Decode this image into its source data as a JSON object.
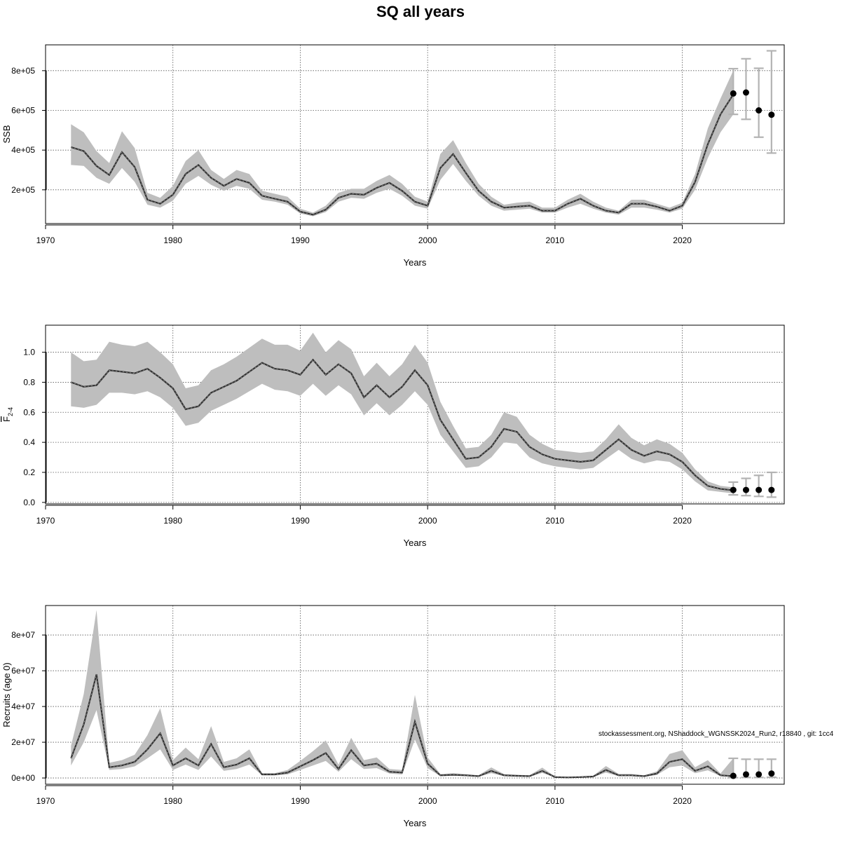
{
  "title": "SQ all years",
  "footnote": "stockassessment.org, NShaddock_WGNSSK2024_Run2, r18840 , git: 1cc4",
  "colors": {
    "band": "#bebebe",
    "line": "#333333",
    "errorbar": "#b3b3b3",
    "point": "#000000",
    "grid": "#555555"
  },
  "chart_data": [
    {
      "type": "line",
      "ylabel": "SSB",
      "xlabel": "Years",
      "xlim": [
        1970,
        2028
      ],
      "ylim": [
        30000,
        930000
      ],
      "xticks": [
        1970,
        1980,
        1990,
        2000,
        2010,
        2020
      ],
      "yticks": [
        200000,
        400000,
        600000,
        800000
      ],
      "ytick_labels": [
        "2e+05",
        "4e+05",
        "6e+05",
        "8e+05"
      ],
      "grid": true,
      "x": [
        1972,
        1973,
        1974,
        1975,
        1976,
        1977,
        1978,
        1979,
        1980,
        1981,
        1982,
        1983,
        1984,
        1985,
        1986,
        1987,
        1988,
        1989,
        1990,
        1991,
        1992,
        1993,
        1994,
        1995,
        1996,
        1997,
        1998,
        1999,
        2000,
        2001,
        2002,
        2003,
        2004,
        2005,
        2006,
        2007,
        2008,
        2009,
        2010,
        2011,
        2012,
        2013,
        2014,
        2015,
        2016,
        2017,
        2018,
        2019,
        2020,
        2021,
        2022,
        2023,
        2024
      ],
      "estimate": [
        415000,
        395000,
        320000,
        275000,
        390000,
        315000,
        150000,
        130000,
        175000,
        280000,
        325000,
        260000,
        220000,
        255000,
        235000,
        170000,
        155000,
        140000,
        90000,
        75000,
        100000,
        160000,
        180000,
        175000,
        210000,
        235000,
        195000,
        140000,
        120000,
        310000,
        380000,
        285000,
        195000,
        140000,
        110000,
        115000,
        120000,
        95000,
        95000,
        130000,
        155000,
        120000,
        95000,
        85000,
        130000,
        130000,
        115000,
        95000,
        120000,
        240000,
        430000,
        580000,
        680000
      ],
      "lower": [
        325000,
        320000,
        260000,
        230000,
        310000,
        240000,
        125000,
        110000,
        145000,
        230000,
        270000,
        225000,
        195000,
        220000,
        205000,
        150000,
        140000,
        125000,
        80000,
        67000,
        88000,
        140000,
        160000,
        155000,
        185000,
        205000,
        170000,
        120000,
        105000,
        250000,
        330000,
        245000,
        170000,
        120000,
        95000,
        100000,
        105000,
        85000,
        85000,
        110000,
        130000,
        105000,
        85000,
        75000,
        110000,
        110000,
        100000,
        85000,
        105000,
        200000,
        360000,
        490000,
        580000
      ],
      "upper": [
        530000,
        490000,
        395000,
        335000,
        495000,
        410000,
        185000,
        160000,
        220000,
        345000,
        400000,
        300000,
        255000,
        300000,
        280000,
        195000,
        180000,
        165000,
        105000,
        85000,
        120000,
        185000,
        205000,
        205000,
        245000,
        275000,
        230000,
        165000,
        140000,
        380000,
        450000,
        335000,
        230000,
        165000,
        125000,
        135000,
        140000,
        110000,
        110000,
        150000,
        180000,
        140000,
        110000,
        95000,
        150000,
        150000,
        130000,
        110000,
        135000,
        280000,
        510000,
        660000,
        800000
      ],
      "forecast": [
        {
          "year": 2024,
          "value": 685000,
          "lower": 580000,
          "upper": 810000
        },
        {
          "year": 2025,
          "value": 690000,
          "lower": 555000,
          "upper": 860000
        },
        {
          "year": 2026,
          "value": 600000,
          "lower": 465000,
          "upper": 812000
        },
        {
          "year": 2027,
          "value": 578000,
          "lower": 385000,
          "upper": 900000
        }
      ]
    },
    {
      "type": "line",
      "ylabel_main": "F",
      "ylabel_sub": "2-4",
      "xlabel": "Years",
      "xlim": [
        1970,
        2028
      ],
      "ylim": [
        -0.01,
        1.18
      ],
      "xticks": [
        1970,
        1980,
        1990,
        2000,
        2010,
        2020
      ],
      "yticks": [
        0.0,
        0.2,
        0.4,
        0.6,
        0.8,
        1.0
      ],
      "ytick_labels": [
        "0.0",
        "0.2",
        "0.4",
        "0.6",
        "0.8",
        "1.0"
      ],
      "grid": true,
      "x": [
        1972,
        1973,
        1974,
        1975,
        1976,
        1977,
        1978,
        1979,
        1980,
        1981,
        1982,
        1983,
        1984,
        1985,
        1986,
        1987,
        1988,
        1989,
        1990,
        1991,
        1992,
        1993,
        1994,
        1995,
        1996,
        1997,
        1998,
        1999,
        2000,
        2001,
        2002,
        2003,
        2004,
        2005,
        2006,
        2007,
        2008,
        2009,
        2010,
        2011,
        2012,
        2013,
        2014,
        2015,
        2016,
        2017,
        2018,
        2019,
        2020,
        2021,
        2022,
        2023,
        2024
      ],
      "estimate": [
        0.8,
        0.77,
        0.78,
        0.88,
        0.87,
        0.86,
        0.89,
        0.83,
        0.76,
        0.62,
        0.64,
        0.73,
        0.77,
        0.81,
        0.87,
        0.93,
        0.89,
        0.88,
        0.85,
        0.95,
        0.85,
        0.92,
        0.86,
        0.7,
        0.78,
        0.7,
        0.77,
        0.88,
        0.78,
        0.55,
        0.42,
        0.29,
        0.3,
        0.37,
        0.49,
        0.47,
        0.37,
        0.32,
        0.29,
        0.28,
        0.27,
        0.28,
        0.35,
        0.42,
        0.35,
        0.31,
        0.34,
        0.32,
        0.27,
        0.18,
        0.11,
        0.09,
        0.08
      ],
      "lower": [
        0.64,
        0.63,
        0.65,
        0.73,
        0.73,
        0.72,
        0.74,
        0.7,
        0.63,
        0.51,
        0.53,
        0.61,
        0.65,
        0.69,
        0.74,
        0.79,
        0.75,
        0.74,
        0.71,
        0.79,
        0.71,
        0.78,
        0.72,
        0.58,
        0.66,
        0.58,
        0.65,
        0.74,
        0.65,
        0.45,
        0.34,
        0.23,
        0.24,
        0.3,
        0.4,
        0.39,
        0.3,
        0.26,
        0.24,
        0.23,
        0.22,
        0.23,
        0.29,
        0.35,
        0.29,
        0.26,
        0.28,
        0.27,
        0.22,
        0.14,
        0.08,
        0.07,
        0.06
      ],
      "upper": [
        1.0,
        0.94,
        0.95,
        1.07,
        1.05,
        1.04,
        1.07,
        1.0,
        0.92,
        0.76,
        0.78,
        0.88,
        0.92,
        0.97,
        1.03,
        1.09,
        1.05,
        1.05,
        1.01,
        1.13,
        1.0,
        1.08,
        1.02,
        0.84,
        0.93,
        0.84,
        0.92,
        1.05,
        0.93,
        0.67,
        0.51,
        0.36,
        0.37,
        0.45,
        0.6,
        0.57,
        0.45,
        0.39,
        0.35,
        0.34,
        0.33,
        0.34,
        0.42,
        0.52,
        0.43,
        0.38,
        0.42,
        0.39,
        0.33,
        0.22,
        0.14,
        0.11,
        0.1
      ],
      "forecast": [
        {
          "year": 2024,
          "value": 0.083,
          "lower": 0.05,
          "upper": 0.135
        },
        {
          "year": 2025,
          "value": 0.083,
          "lower": 0.045,
          "upper": 0.16
        },
        {
          "year": 2026,
          "value": 0.083,
          "lower": 0.04,
          "upper": 0.18
        },
        {
          "year": 2027,
          "value": 0.083,
          "lower": 0.035,
          "upper": 0.2
        }
      ]
    },
    {
      "type": "line",
      "ylabel": "Recruits (age 0)",
      "xlabel": "Years",
      "xlim": [
        1970,
        2028
      ],
      "ylim": [
        -3500000,
        96500000
      ],
      "xticks": [
        1970,
        1980,
        1990,
        2000,
        2010,
        2020
      ],
      "yticks": [
        0,
        20000000,
        40000000,
        60000000,
        80000000
      ],
      "ytick_labels": [
        "0e+00",
        "2e+07",
        "4e+07",
        "6e+07",
        "8e+07"
      ],
      "grid": true,
      "x": [
        1972,
        1973,
        1974,
        1975,
        1976,
        1977,
        1978,
        1979,
        1980,
        1981,
        1982,
        1983,
        1984,
        1985,
        1986,
        1987,
        1988,
        1989,
        1990,
        1991,
        1992,
        1993,
        1994,
        1995,
        1996,
        1997,
        1998,
        1999,
        2000,
        2001,
        2002,
        2003,
        2004,
        2005,
        2006,
        2007,
        2008,
        2009,
        2010,
        2011,
        2012,
        2013,
        2014,
        2015,
        2016,
        2017,
        2018,
        2019,
        2020,
        2021,
        2022,
        2023,
        2024
      ],
      "estimate": [
        11000000,
        30000000,
        58000000,
        6000000,
        7000000,
        9000000,
        16000000,
        25000000,
        7000000,
        11000000,
        7000000,
        19000000,
        6000000,
        7500000,
        11000000,
        2000000,
        2000000,
        3000000,
        6500000,
        10000000,
        14000000,
        5000000,
        15500000,
        7000000,
        8000000,
        3500000,
        3000000,
        31500000,
        8000000,
        1500000,
        1800000,
        1500000,
        1000000,
        4000000,
        1500000,
        1200000,
        1000000,
        4000000,
        500000,
        300000,
        500000,
        800000,
        4500000,
        1500000,
        1500000,
        1000000,
        2500000,
        9000000,
        10500000,
        4000000,
        6500000,
        1500000,
        1000000
      ],
      "lower": [
        7000000,
        20000000,
        38000000,
        4500000,
        5000000,
        6500000,
        11000000,
        16000000,
        4500000,
        7500000,
        4500000,
        12000000,
        4000000,
        5000000,
        7500000,
        1500000,
        1500000,
        2000000,
        4500000,
        7000000,
        9500000,
        3500000,
        10500000,
        5000000,
        5500000,
        2500000,
        2000000,
        21500000,
        5500000,
        1000000,
        1200000,
        1000000,
        700000,
        2700000,
        1000000,
        800000,
        700000,
        2800000,
        300000,
        200000,
        300000,
        500000,
        3000000,
        1000000,
        1000000,
        700000,
        1700000,
        6000000,
        7000000,
        2700000,
        4300000,
        1000000,
        500000
      ],
      "upper": [
        18000000,
        47000000,
        94000000,
        8500000,
        10000000,
        13000000,
        24000000,
        39000000,
        10000000,
        17000000,
        10500000,
        29000000,
        9000000,
        11000000,
        16000000,
        2700000,
        2700000,
        4500000,
        9500000,
        15000000,
        21000000,
        7500000,
        22500000,
        10000000,
        11500000,
        5000000,
        4500000,
        46500000,
        11500000,
        2200000,
        2600000,
        2200000,
        1500000,
        5900000,
        2200000,
        1800000,
        1500000,
        5800000,
        800000,
        500000,
        800000,
        1200000,
        6700000,
        2300000,
        2300000,
        1500000,
        3700000,
        13500000,
        15500000,
        6000000,
        10000000,
        2500000,
        11000000
      ],
      "forecast": [
        {
          "year": 2024,
          "value": 1200000,
          "lower": 200000,
          "upper": 11000000
        },
        {
          "year": 2025,
          "value": 2000000,
          "lower": 300000,
          "upper": 10500000
        },
        {
          "year": 2026,
          "value": 2000000,
          "lower": 300000,
          "upper": 10500000
        },
        {
          "year": 2027,
          "value": 2500000,
          "lower": 400000,
          "upper": 10500000
        }
      ]
    }
  ]
}
